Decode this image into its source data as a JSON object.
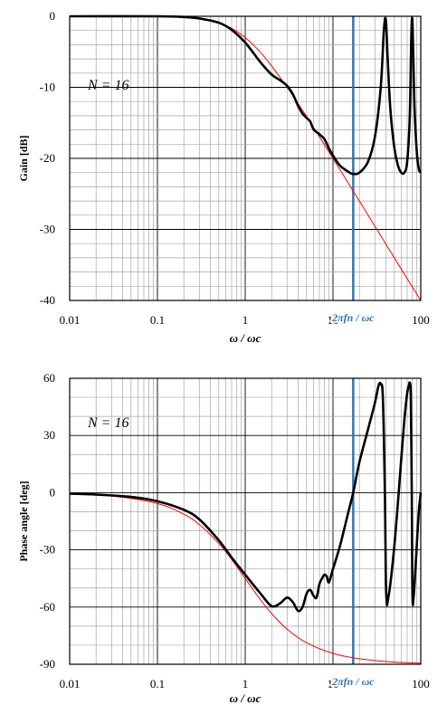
{
  "chart_data": [
    {
      "type": "line",
      "xlabel": "ω / ωc",
      "ylabel": "Gain [dB]",
      "xscale": "log",
      "xlim": [
        0.01,
        100
      ],
      "ylim": [
        -40,
        0
      ],
      "xticks": [
        "0.01",
        "0.1",
        "1",
        "10",
        "100"
      ],
      "yticks": [
        "0",
        "-10",
        "-20",
        "-30",
        "-40"
      ],
      "annotation": "N = 16",
      "marker": {
        "label": "2πfn / ωc",
        "x": 17
      },
      "grid": true,
      "series": [
        {
          "color": "#000000",
          "x": [
            0.01,
            0.1,
            0.2,
            0.3,
            0.5,
            0.7,
            1,
            1.5,
            2,
            2.5,
            3,
            3.5,
            4,
            4.5,
            5,
            5.5,
            6,
            7,
            8,
            9,
            10,
            12,
            15,
            17,
            20,
            25,
            30,
            35,
            38,
            40,
            42,
            45,
            50,
            55,
            60,
            65,
            70,
            75,
            78,
            80,
            82,
            85,
            90,
            95,
            100
          ],
          "values": [
            0,
            0,
            -0.1,
            -0.3,
            -0.9,
            -1.9,
            -3.7,
            -6.5,
            -8.2,
            -9.0,
            -9.8,
            -11.0,
            -12.6,
            -13.7,
            -14.3,
            -14.8,
            -15.9,
            -16.6,
            -17.3,
            -18.6,
            -19.6,
            -21.0,
            -21.9,
            -22.2,
            -22.0,
            -20.5,
            -17.0,
            -10.0,
            -2.0,
            -0.5,
            -6.0,
            -13.0,
            -18.5,
            -21.0,
            -22.0,
            -22.0,
            -20.5,
            -14.0,
            -3.0,
            -0.3,
            -5.0,
            -13.0,
            -19.0,
            -21.5,
            -22.0
          ]
        },
        {
          "color": "#ff0000",
          "x": [
            0.01,
            0.1,
            0.3,
            0.5,
            0.7,
            1,
            1.5,
            2,
            3,
            5,
            10,
            20,
            50,
            100
          ],
          "values": [
            0,
            0,
            -0.4,
            -1.0,
            -1.7,
            -3.0,
            -5.1,
            -7.0,
            -10.0,
            -14.1,
            -20.0,
            -26.0,
            -34.0,
            -40.0
          ]
        }
      ]
    },
    {
      "type": "line",
      "xlabel": "ω / ωc",
      "ylabel": "Phase angle [deg]",
      "xscale": "log",
      "xlim": [
        0.01,
        100
      ],
      "ylim": [
        -90,
        60
      ],
      "xticks": [
        "0.01",
        "0.1",
        "1",
        "10",
        "100"
      ],
      "yticks": [
        "60",
        "30",
        "0",
        "-30",
        "-60",
        "-90"
      ],
      "annotation": "N = 16",
      "marker": {
        "label": "2πfn / ωc",
        "x": 17
      },
      "grid": true,
      "series": [
        {
          "color": "#000000",
          "x": [
            0.01,
            0.02,
            0.05,
            0.1,
            0.2,
            0.3,
            0.5,
            0.7,
            1,
            1.5,
            2,
            2.5,
            3,
            3.5,
            4,
            4.5,
            5,
            5.5,
            6,
            6.5,
            7,
            7.5,
            8,
            8.5,
            9,
            10,
            12,
            15,
            17,
            20,
            25,
            30,
            33,
            35,
            37,
            39,
            40,
            41,
            42,
            45,
            50,
            55,
            60,
            65,
            70,
            73,
            75,
            77,
            79,
            80,
            81,
            82,
            85,
            90,
            95,
            100
          ],
          "values": [
            -0.5,
            -1.0,
            -2.2,
            -4.5,
            -9.0,
            -14.0,
            -25.0,
            -34.0,
            -43.0,
            -53.0,
            -59.5,
            -58.0,
            -55.0,
            -57.5,
            -62.0,
            -60.0,
            -53.0,
            -51.0,
            -54.0,
            -55.0,
            -48.0,
            -45.0,
            -43.0,
            -44.0,
            -47.0,
            -40.0,
            -28.0,
            -10.0,
            0.0,
            16.0,
            33.0,
            47.0,
            56.0,
            57.0,
            50.0,
            0.0,
            -45.0,
            -58.0,
            -57.0,
            -48.0,
            -28.0,
            -5.0,
            18.0,
            38.0,
            52.0,
            56.0,
            57.5,
            50.0,
            0.0,
            -45.0,
            -58.0,
            -57.0,
            -48.0,
            -28.0,
            -10.0,
            0.0
          ]
        },
        {
          "color": "#ff0000",
          "x": [
            0.01,
            0.03,
            0.1,
            0.2,
            0.3,
            0.5,
            0.7,
            1,
            1.5,
            2,
            3,
            5,
            10,
            20,
            50,
            100
          ],
          "values": [
            -0.6,
            -1.7,
            -5.7,
            -11.3,
            -16.7,
            -26.6,
            -35.0,
            -45.0,
            -56.3,
            -63.4,
            -71.6,
            -78.7,
            -84.3,
            -87.1,
            -88.9,
            -89.4
          ]
        }
      ]
    }
  ]
}
